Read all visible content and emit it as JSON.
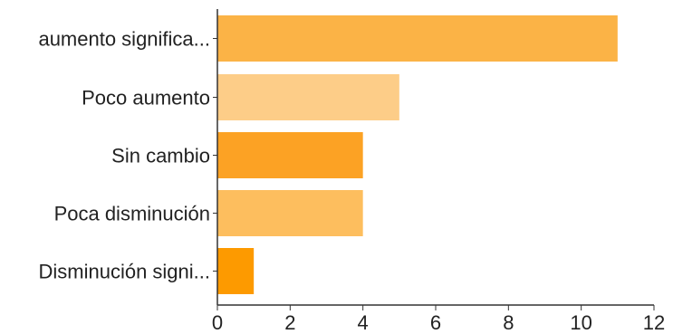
{
  "chart_data": {
    "type": "bar",
    "orientation": "horizontal",
    "categories": [
      "aumento significa...",
      "Poco aumento",
      "Sin cambio",
      "Poca disminución",
      "Disminución signi..."
    ],
    "values": [
      11,
      5,
      4,
      4,
      1
    ],
    "colors": [
      "#fbb346",
      "#fdcd88",
      "#fca224",
      "#fdbe5e",
      "#fd9a00"
    ],
    "xlim": [
      0,
      12
    ],
    "xticks": [
      "0",
      "2",
      "4",
      "6",
      "8",
      "10",
      "12"
    ],
    "title": "",
    "xlabel": "",
    "ylabel": "",
    "grid": false
  }
}
